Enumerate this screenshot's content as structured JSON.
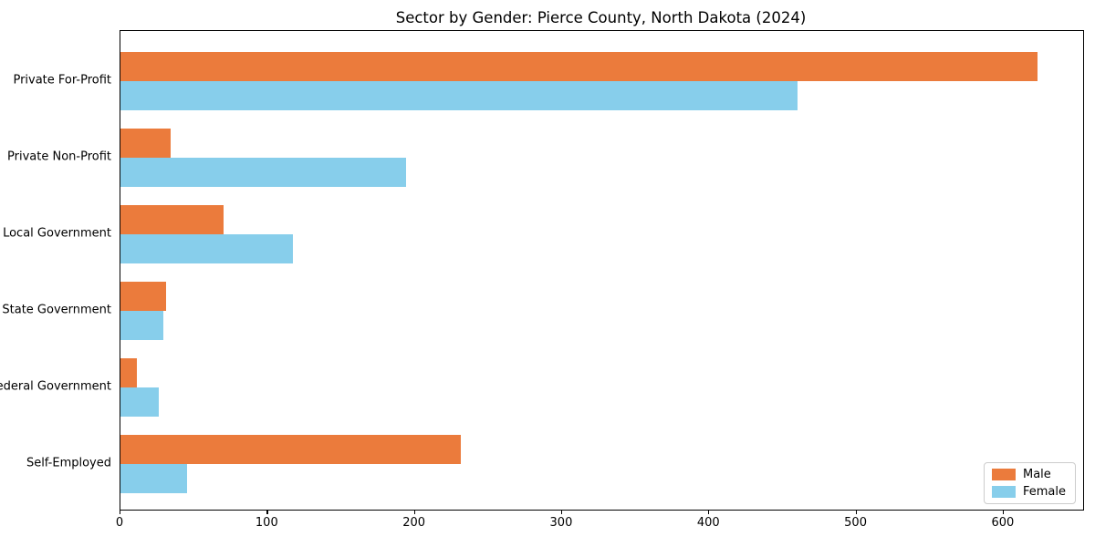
{
  "chart_data": {
    "type": "bar",
    "orientation": "horizontal",
    "title": "Sector by Gender: Pierce County, North Dakota (2024)",
    "categories": [
      "Private For-Profit",
      "Private Non-Profit",
      "Local Government",
      "State Government",
      "Federal Government",
      "Self-Employed"
    ],
    "series": [
      {
        "name": "Male",
        "color": "#EB7B3C",
        "values": [
          623,
          34,
          70,
          31,
          11,
          231
        ]
      },
      {
        "name": "Female",
        "color": "#87CEEB",
        "values": [
          460,
          194,
          117,
          29,
          26,
          45
        ]
      }
    ],
    "xlabel": "",
    "ylabel": "",
    "xlim": [
      0,
      654
    ],
    "x_ticks": [
      0,
      100,
      200,
      300,
      400,
      500,
      600
    ],
    "grid": false,
    "legend": {
      "position": "lower right",
      "entries": [
        "Male",
        "Female"
      ]
    }
  }
}
